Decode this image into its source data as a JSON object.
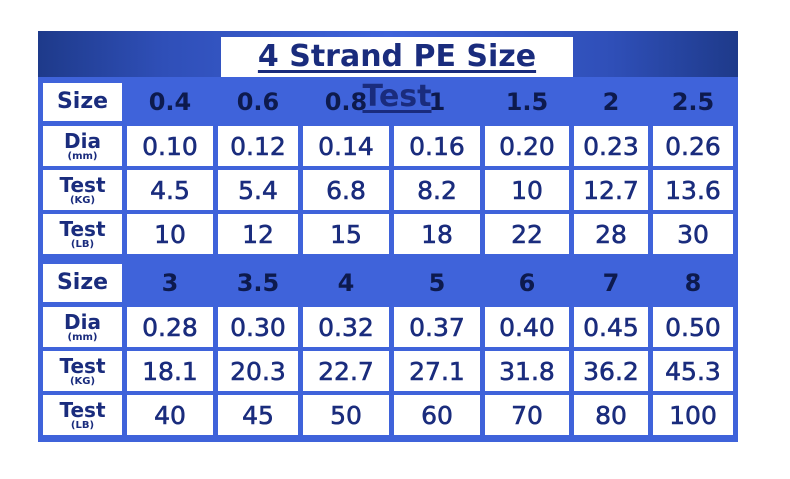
{
  "title": "4 Strand PE Size Test",
  "labels": {
    "size": "Size",
    "dia": "Dia",
    "dia_unit": "(mm)",
    "test": "Test",
    "kg_unit": "(KG)",
    "lb_unit": "(LB)"
  },
  "blocks": [
    {
      "sizes": [
        "0.4",
        "0.6",
        "0.8",
        "1",
        "1.5",
        "2",
        "2.5"
      ],
      "dia": [
        "0.10",
        "0.12",
        "0.14",
        "0.16",
        "0.20",
        "0.23",
        "0.26"
      ],
      "kg": [
        "4.5",
        "5.4",
        "6.8",
        "8.2",
        "10",
        "12.7",
        "13.6"
      ],
      "lb": [
        "10",
        "12",
        "15",
        "18",
        "22",
        "28",
        "30"
      ]
    },
    {
      "sizes": [
        "3",
        "3.5",
        "4",
        "5",
        "6",
        "7",
        "8"
      ],
      "dia": [
        "0.28",
        "0.30",
        "0.32",
        "0.37",
        "0.40",
        "0.45",
        "0.50"
      ],
      "kg": [
        "18.1",
        "20.3",
        "22.7",
        "27.1",
        "31.8",
        "36.2",
        "45.3"
      ],
      "lb": [
        "40",
        "45",
        "50",
        "60",
        "70",
        "80",
        "100"
      ]
    }
  ],
  "colors": {
    "frame_blue": "#3f63da",
    "text_navy": "#1a2c7d",
    "cell_white": "#ffffff"
  }
}
